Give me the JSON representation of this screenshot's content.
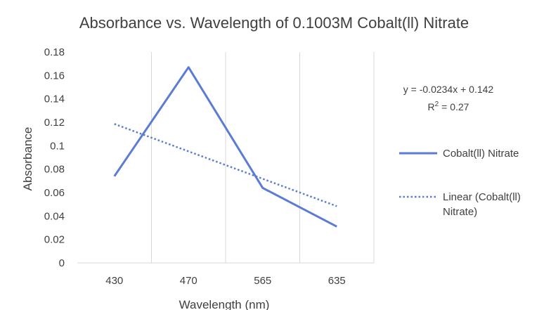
{
  "chart_data": {
    "type": "line",
    "title": "Absorbance vs. Wavelength of 0.1003M Cobalt(ll) Nitrate",
    "xlabel": "Wavelength (nm)",
    "ylabel": "Absorbance",
    "categories": [
      "430",
      "470",
      "565",
      "635"
    ],
    "ylim": [
      0,
      0.18
    ],
    "yticks": [
      "0",
      "0.02",
      "0.04",
      "0.06",
      "0.08",
      "0.1",
      "0.12",
      "0.14",
      "0.16",
      "0.18"
    ],
    "grid": "vertical",
    "legend_position": "right",
    "series": [
      {
        "name": "Cobalt(ll) Nitrate",
        "values": [
          0.074,
          0.167,
          0.064,
          0.031
        ],
        "color": "#5b7bd5",
        "style": "solid"
      },
      {
        "name": "Linear (Cobalt(ll) Nitrate)",
        "trendline": "linear",
        "values": [
          0.1186,
          0.0952,
          0.0718,
          0.0484
        ],
        "color": "#5b7bd5",
        "style": "dotted"
      }
    ],
    "trendline_equation": "y = -0.0234x + 0.142",
    "r_squared_base": "R",
    "r_squared_exp": "2",
    "r_squared_value": " = 0.27"
  }
}
